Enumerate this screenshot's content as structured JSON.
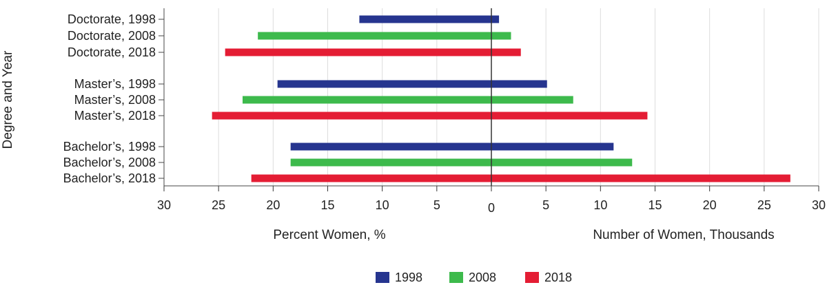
{
  "chart_data": {
    "type": "bar",
    "orientation": "horizontal",
    "layout": "butterfly",
    "ylabel": "Degree and Year",
    "xlabel_left": "Percent Women, %",
    "xlabel_right": "Number of Women, Thousands",
    "xlim_left": [
      0,
      30
    ],
    "xlim_right": [
      0,
      30
    ],
    "x_ticks": [
      30,
      25,
      20,
      15,
      10,
      5,
      0,
      5,
      10,
      15,
      20,
      25,
      30
    ],
    "grid": true,
    "legend_position": "bottom-center",
    "categories": [
      "Doctorate, 1998",
      "Doctorate, 2008",
      "Doctorate, 2018",
      "Master’s, 1998",
      "Master’s, 2008",
      "Master’s, 2018",
      "Bachelor’s, 1998",
      "Bachelor’s, 2008",
      "Bachelor’s, 2018"
    ],
    "groups": [
      "Doctorate",
      "Master’s",
      "Bachelor’s"
    ],
    "bars": [
      {
        "label": "Doctorate, 1998",
        "year": "1998",
        "percent_women": 12.1,
        "number_women_thousands": 0.7
      },
      {
        "label": "Doctorate, 2008",
        "year": "2008",
        "percent_women": 21.4,
        "number_women_thousands": 1.8
      },
      {
        "label": "Doctorate, 2018",
        "year": "2018",
        "percent_women": 24.4,
        "number_women_thousands": 2.7
      },
      {
        "label": "Master’s, 1998",
        "year": "1998",
        "percent_women": 19.6,
        "number_women_thousands": 5.1
      },
      {
        "label": "Master’s, 2008",
        "year": "2008",
        "percent_women": 22.8,
        "number_women_thousands": 7.5
      },
      {
        "label": "Master’s, 2018",
        "year": "2018",
        "percent_women": 25.6,
        "number_women_thousands": 14.3
      },
      {
        "label": "Bachelor’s, 1998",
        "year": "1998",
        "percent_women": 18.4,
        "number_women_thousands": 11.2
      },
      {
        "label": "Bachelor’s, 2008",
        "year": "2008",
        "percent_women": 18.4,
        "number_women_thousands": 12.9
      },
      {
        "label": "Bachelor’s, 2018",
        "year": "2018",
        "percent_women": 22.0,
        "number_women_thousands": 27.4
      }
    ],
    "legend": [
      {
        "name": "1998",
        "color": "#26358f"
      },
      {
        "name": "2008",
        "color": "#3dba4c"
      },
      {
        "name": "2018",
        "color": "#e41d34"
      }
    ]
  }
}
